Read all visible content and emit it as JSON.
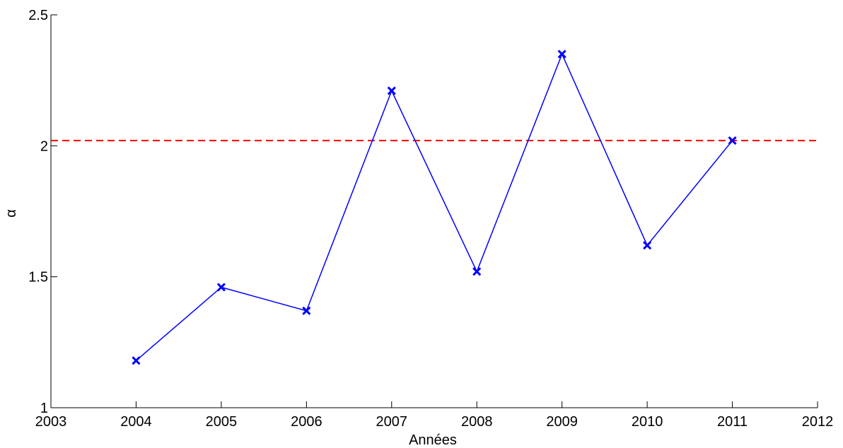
{
  "chart_data": {
    "type": "line",
    "xlabel": "Années",
    "ylabel": "α",
    "xlim": [
      2003,
      2012
    ],
    "ylim": [
      1,
      2.5
    ],
    "x_ticks": [
      2003,
      2004,
      2005,
      2006,
      2007,
      2008,
      2009,
      2010,
      2011,
      2012
    ],
    "y_ticks": [
      1,
      1.5,
      2,
      2.5
    ],
    "y_tick_labels": [
      "1",
      "1.5",
      "2",
      "2.5"
    ],
    "grid": false,
    "series": [
      {
        "color": "#0000ff",
        "marker": "x",
        "x": [
          2004,
          2005,
          2006,
          2007,
          2008,
          2009,
          2010,
          2011
        ],
        "y": [
          1.18,
          1.46,
          1.37,
          2.21,
          1.52,
          2.35,
          1.62,
          2.02
        ]
      }
    ],
    "reference_line": {
      "orientation": "horizontal",
      "y": 2.02,
      "color": "#ff0000",
      "style": "dashed"
    }
  }
}
